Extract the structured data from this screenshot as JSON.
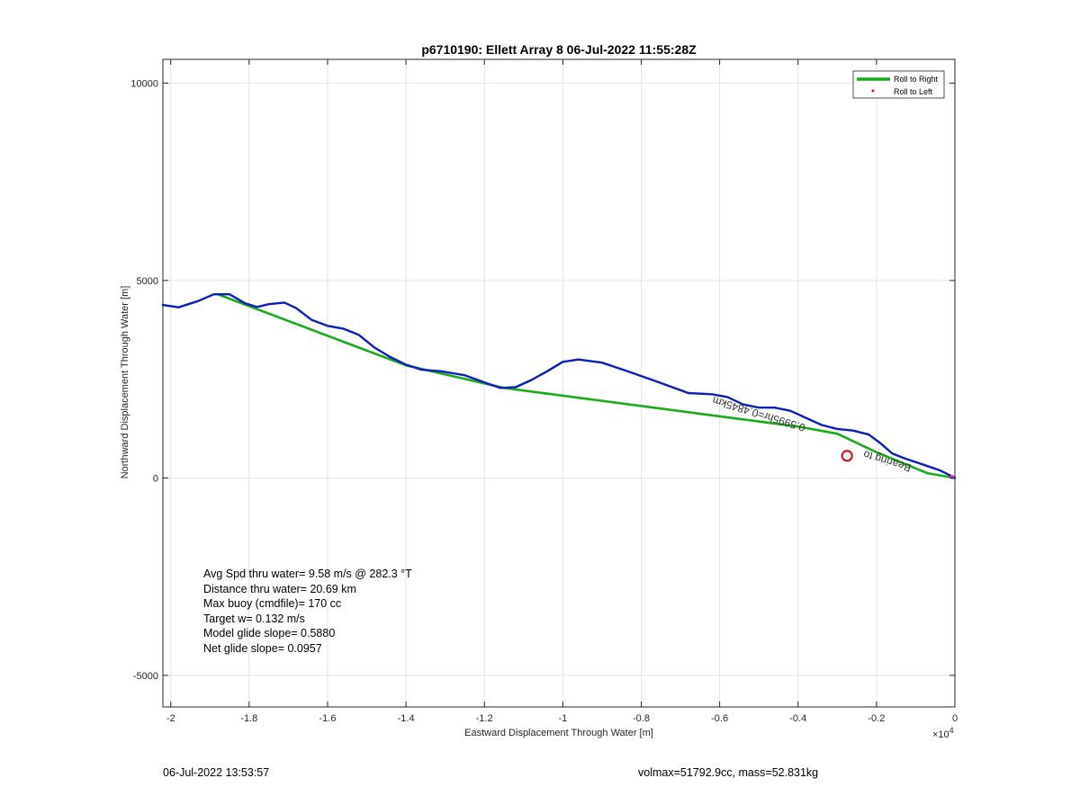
{
  "chart_data": {
    "type": "line",
    "title": "p6710190: Ellett Array 8 06-Jul-2022 11:55:28Z",
    "xlabel": "Eastward Displacement Through Water [m]",
    "ylabel": "Northward Displacement Through Water [m]",
    "x_exponent_label": "×10",
    "x_exponent_power": "4",
    "xlim": [
      -20200,
      0
    ],
    "ylim": [
      -5800,
      10600
    ],
    "x_ticks": [
      -20000,
      -18000,
      -16000,
      -14000,
      -12000,
      -10000,
      -8000,
      -6000,
      -4000,
      -2000,
      0
    ],
    "x_tick_labels": [
      "-2",
      "-1.8",
      "-1.6",
      "-1.4",
      "-1.2",
      "-1",
      "-0.8",
      "-0.6",
      "-0.4",
      "-0.2",
      "0"
    ],
    "y_ticks": [
      -5000,
      0,
      5000,
      10000
    ],
    "y_tick_labels": [
      "-5000",
      "0",
      "5000",
      "10000"
    ],
    "grid": true,
    "legend_position": "top-right",
    "legend": [
      {
        "label": "Roll to Right",
        "color": "#1aab1a",
        "style": "line"
      },
      {
        "label": "Roll to Left",
        "color": "#e41a1c",
        "style": "dot"
      }
    ],
    "series": [
      {
        "name": "Roll to Right",
        "color": "#1aab1a",
        "x": [
          -18800,
          -14000,
          -11500,
          -4000,
          -3000,
          -2000,
          -700,
          0
        ],
        "y": [
          4650,
          2850,
          2280,
          1300,
          1120,
          650,
          120,
          0
        ]
      },
      {
        "color": "#0b1fbb",
        "x": [
          -20200,
          -19800,
          -19300,
          -18900,
          -18500,
          -18100,
          -17800,
          -17500,
          -17100,
          -16800,
          -16400,
          -16000,
          -15600,
          -15200,
          -14800,
          -14400,
          -14000,
          -13600,
          -13100,
          -12500,
          -12000,
          -11600,
          -11200,
          -10800,
          -10400,
          -10000,
          -9600,
          -9000,
          -8400,
          -7600,
          -6800,
          -6200,
          -5800,
          -5400,
          -5000,
          -4600,
          -4200,
          -3800,
          -3400,
          -3000,
          -2600,
          -2200,
          -1900,
          -1600,
          -1300,
          -1000,
          -700,
          -400,
          -150,
          0
        ],
        "y": [
          4380,
          4320,
          4480,
          4650,
          4650,
          4420,
          4330,
          4400,
          4440,
          4300,
          4000,
          3850,
          3780,
          3620,
          3300,
          3060,
          2870,
          2740,
          2700,
          2600,
          2420,
          2280,
          2300,
          2480,
          2700,
          2940,
          3000,
          2920,
          2720,
          2440,
          2150,
          2120,
          2050,
          1860,
          1780,
          1780,
          1700,
          1520,
          1340,
          1240,
          1200,
          1100,
          880,
          620,
          500,
          400,
          300,
          200,
          80,
          0
        ]
      }
    ],
    "annotations": [
      {
        "text": "Bearing to",
        "x": -1100,
        "y": 330,
        "color": "#333333"
      },
      {
        "text": "0.5995hr=0.4845km",
        "x": -3800,
        "y": 1350,
        "color": "#333333"
      }
    ],
    "marker": {
      "x": -2750,
      "y": 560,
      "color": "#d01a1a"
    },
    "end_marker": {
      "x": 0,
      "y": 0,
      "color": "#d23ad2"
    },
    "stats": [
      "Avg Spd thru water=  9.58 m/s @ 282.3 °T",
      "Distance thru water= 20.69 km",
      "Max buoy (cmdfile)= 170 cc",
      "Target w= 0.132 m/s",
      "Model glide slope= 0.5880",
      "Net glide slope= 0.0957"
    ]
  },
  "footer": {
    "date": "06-Jul-2022 13:53:57",
    "info": "volmax=51792.9cc, mass=52.831kg"
  }
}
